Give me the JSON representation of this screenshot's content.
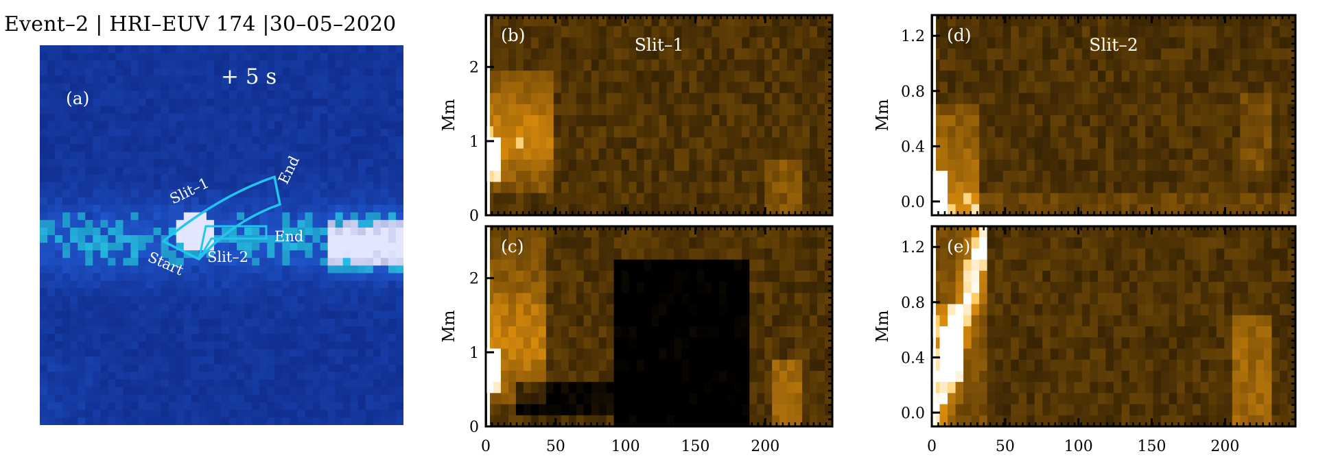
{
  "figure": {
    "title": "Event–2 | HRI–EUV 174 |30–05–2020",
    "panel_a": {
      "label": "(a)",
      "time": "+ 5 s",
      "slit1_label": "Slit–1",
      "slit1_end": "End",
      "slit2_label": "Slit–2",
      "slit2_end": "End",
      "start_label": "Start",
      "colormap": "blue (HRI-EUV intensity)",
      "slit_color": "#22c4f0"
    },
    "panels": {
      "b": {
        "label": "(b)",
        "slit": "Slit–1"
      },
      "c": {
        "label": "(c)"
      },
      "d": {
        "label": "(d)",
        "slit": "Slit–2"
      },
      "e": {
        "label": "(e)"
      }
    },
    "colors": {
      "blue_bg": "#0a1a8c",
      "gold": "#f5a40a",
      "dark": "#1a1100"
    }
  },
  "chart_data": [
    {
      "type": "heatmap",
      "panel": "(b)",
      "title": "Slit–1",
      "ylabel": "Mm",
      "xlabel": "",
      "ylim": [
        0,
        2.7
      ],
      "xlim": [
        0,
        248
      ],
      "yticks": [
        "0",
        "1",
        "2"
      ],
      "xticks": [],
      "features": "brightenings near x 0–50 at ~0.3–1.5 Mm; weak blob near x ~210"
    },
    {
      "type": "heatmap",
      "panel": "(c)",
      "ylabel": "Mm",
      "xlabel": "",
      "ylim": [
        0,
        2.7
      ],
      "xlim": [
        0,
        248
      ],
      "yticks": [
        "0",
        "1",
        "2"
      ],
      "xticks": [
        "0",
        "50",
        "100",
        "150",
        "200"
      ],
      "features": "bright near x 0–40 and x ~210; dark region x ~100–190"
    },
    {
      "type": "heatmap",
      "panel": "(d)",
      "title": "Slit–2",
      "ylabel": "Mm",
      "xlabel": "",
      "ylim": [
        -0.1,
        1.35
      ],
      "xlim": [
        0,
        248
      ],
      "yticks": [
        "0.0",
        "0.4",
        "0.8",
        "1.2"
      ],
      "xticks": [],
      "features": "brightest near x 0–30 at ~0.0–0.6 Mm"
    },
    {
      "type": "heatmap",
      "panel": "(e)",
      "ylabel": "Mm",
      "xlabel": "",
      "ylim": [
        -0.1,
        1.35
      ],
      "xlim": [
        0,
        248
      ],
      "yticks": [
        "0.0",
        "0.4",
        "0.8",
        "1.2"
      ],
      "xticks": [
        "0",
        "50",
        "100",
        "150",
        "200"
      ],
      "features": "bright diagonal ridge x 0–40 up to ~0.9 Mm; brightening near x ~210"
    }
  ]
}
